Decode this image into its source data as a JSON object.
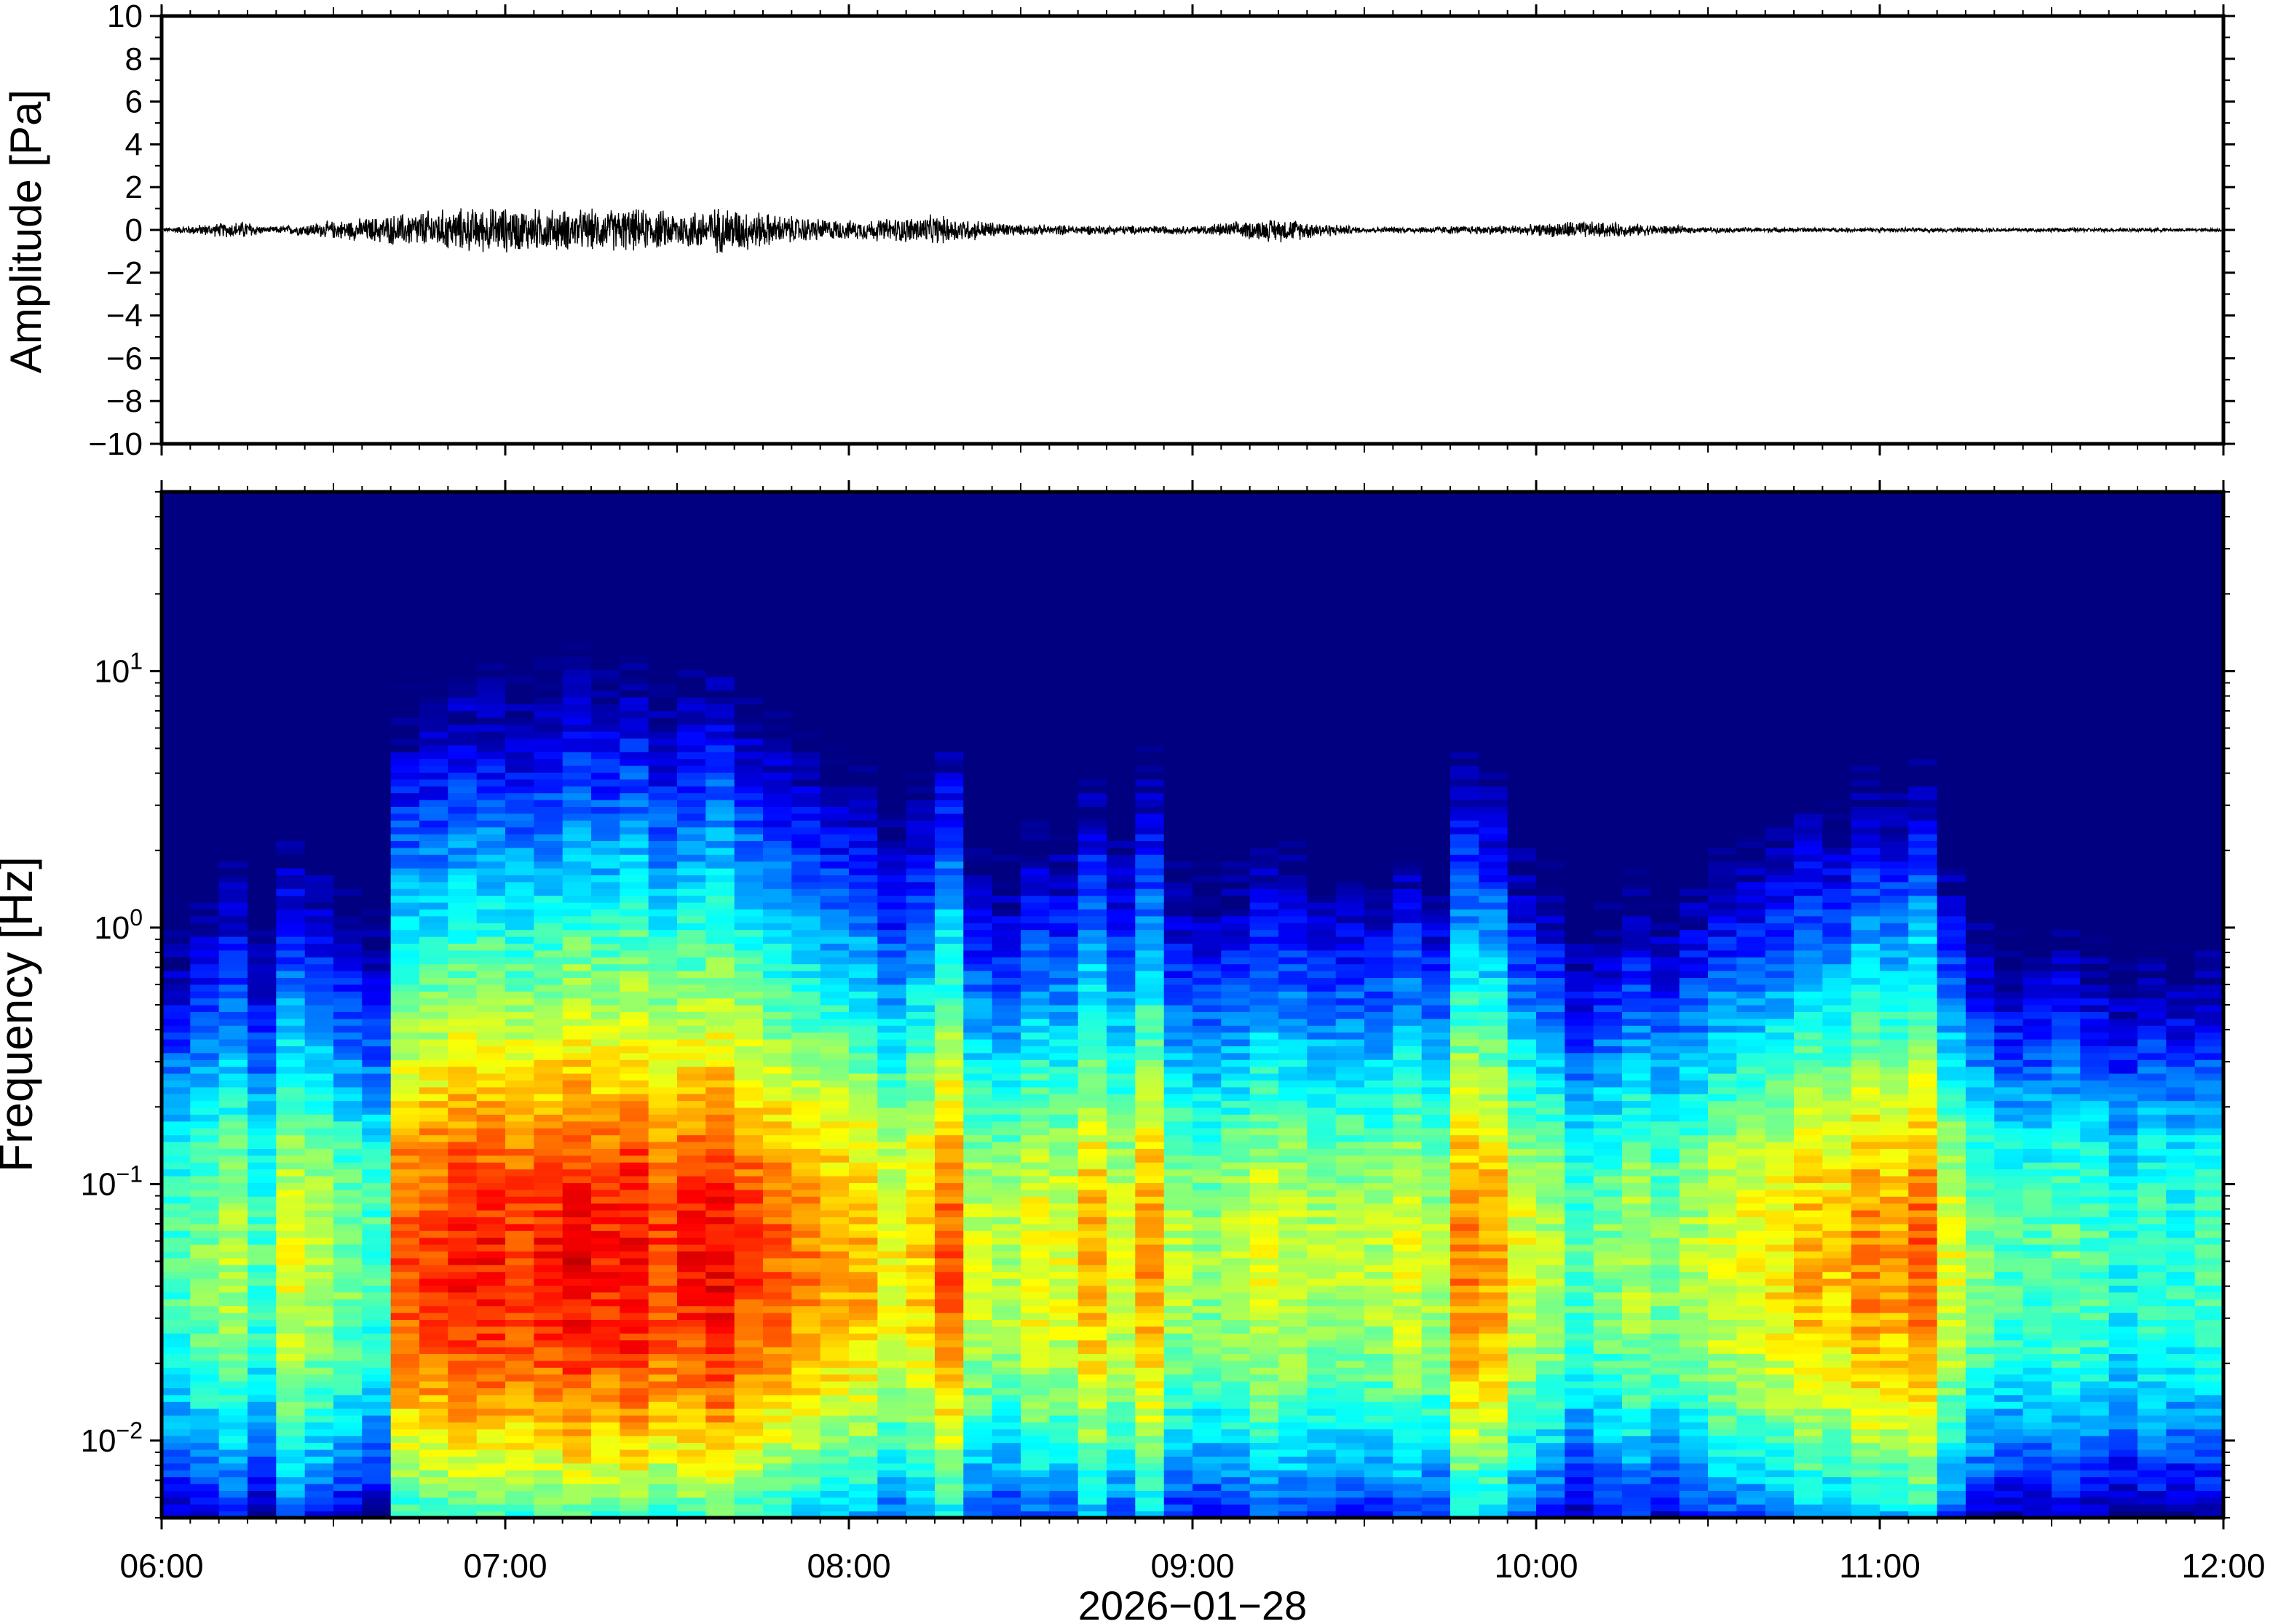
{
  "chart_data": [
    {
      "type": "line",
      "panel": "waveform",
      "ylabel": "Amplitude [Pa]",
      "ylim": [
        -10,
        10
      ],
      "yticks": [
        "10",
        "8",
        "6",
        "4",
        "2",
        "0",
        "−2",
        "−4",
        "−6",
        "−8",
        "−10"
      ],
      "ytick_values": [
        10,
        8,
        6,
        4,
        2,
        0,
        -2,
        -4,
        -6,
        -8,
        -10
      ],
      "x_range_hours": [
        6,
        12
      ],
      "series": [
        {
          "color": "#000000",
          "envelope_hours": [
            6.0,
            6.25,
            6.3,
            6.6,
            6.75,
            6.85,
            7.0,
            7.2,
            7.35,
            7.5,
            7.65,
            7.8,
            8.0,
            8.25,
            8.5,
            9.0,
            9.25,
            9.5,
            10.0,
            10.1,
            10.5,
            11.0,
            11.5,
            12.0
          ],
          "envelope_amplitude_pa": [
            0.08,
            0.35,
            0.1,
            0.45,
            0.7,
            0.8,
            0.85,
            0.75,
            0.8,
            0.7,
            0.9,
            0.55,
            0.35,
            0.55,
            0.2,
            0.15,
            0.45,
            0.1,
            0.2,
            0.35,
            0.1,
            0.08,
            0.08,
            0.06
          ]
        }
      ]
    },
    {
      "type": "heatmap",
      "panel": "spectrogram",
      "ylabel": "Frequency [Hz]",
      "yscale": "log",
      "ylim": [
        0.005,
        50
      ],
      "yticks": [
        {
          "base": "10",
          "exp": "1",
          "value": 10
        },
        {
          "base": "10",
          "exp": "0",
          "value": 1
        },
        {
          "base": "10",
          "exp": "−1",
          "value": 0.1
        },
        {
          "base": "10",
          "exp": "−2",
          "value": 0.01
        }
      ],
      "colormap": "jet (blue = low power, red = high power)",
      "colormap_stops": [
        "#00007f",
        "#0000ff",
        "#007fff",
        "#00ffff",
        "#7fff7f",
        "#ffff00",
        "#ff7f00",
        "#ff0000"
      ],
      "x_range_hours": [
        6,
        12
      ],
      "column_width_minutes": 5,
      "columns_peak_power": [
        0.45,
        0.5,
        0.55,
        0.45,
        0.6,
        0.55,
        0.5,
        0.45,
        0.8,
        0.82,
        0.85,
        0.85,
        0.83,
        0.85,
        0.88,
        0.85,
        0.88,
        0.82,
        0.85,
        0.88,
        0.82,
        0.78,
        0.75,
        0.72,
        0.7,
        0.62,
        0.68,
        0.78,
        0.58,
        0.55,
        0.62,
        0.6,
        0.7,
        0.6,
        0.72,
        0.55,
        0.52,
        0.55,
        0.6,
        0.58,
        0.55,
        0.55,
        0.55,
        0.6,
        0.55,
        0.75,
        0.72,
        0.6,
        0.55,
        0.45,
        0.5,
        0.55,
        0.5,
        0.55,
        0.6,
        0.62,
        0.65,
        0.7,
        0.68,
        0.75,
        0.72,
        0.78,
        0.6,
        0.5,
        0.45,
        0.45,
        0.48,
        0.45,
        0.4,
        0.45,
        0.42,
        0.45
      ]
    }
  ],
  "x_axis": {
    "ticks": [
      "06:00",
      "07:00",
      "08:00",
      "09:00",
      "10:00",
      "11:00",
      "12:00"
    ],
    "tick_hours": [
      6,
      7,
      8,
      9,
      10,
      11,
      12
    ],
    "date_label": "2026−01−28"
  }
}
